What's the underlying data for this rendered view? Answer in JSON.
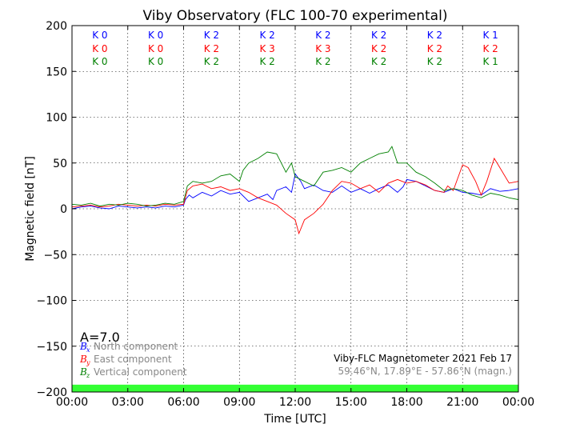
{
  "chart_data": {
    "type": "line",
    "title": "Viby Observatory (FLC 100-70 experimental)",
    "xlabel": "Time [UTC]",
    "ylabel": "Magnetic field [nT]",
    "xlim": [
      0,
      24
    ],
    "ylim": [
      -200,
      200
    ],
    "grid": true,
    "x_tick_labels": [
      "00:00",
      "03:00",
      "06:00",
      "09:00",
      "12:00",
      "15:00",
      "18:00",
      "21:00",
      "00:00"
    ],
    "y_ticks": [
      {
        "value": 200,
        "label": "200"
      },
      {
        "value": 150,
        "label": "150"
      },
      {
        "value": 100,
        "label": "100"
      },
      {
        "value": 50,
        "label": "50"
      },
      {
        "value": 0,
        "label": "0"
      },
      {
        "value": -50,
        "label": "−50"
      },
      {
        "value": -100,
        "label": "−100"
      },
      {
        "value": -150,
        "label": "−150"
      },
      {
        "value": -200,
        "label": "−200"
      }
    ],
    "k_index": {
      "north": {
        "color": "#0000ff",
        "labels": [
          "K 0",
          "K 0",
          "K 2",
          "K 2",
          "K 2",
          "K 2",
          "K 2",
          "K 1"
        ]
      },
      "east": {
        "color": "#ff0000",
        "labels": [
          "K 0",
          "K 0",
          "K 2",
          "K 3",
          "K 3",
          "K 2",
          "K 2",
          "K 2"
        ]
      },
      "vertical": {
        "color": "#008000",
        "labels": [
          "K 0",
          "K 0",
          "K 2",
          "K 2",
          "K 2",
          "K 2",
          "K 2",
          "K 1"
        ]
      }
    },
    "a_index": "A=7.0",
    "legend": {
      "placement": "lower-left",
      "items": [
        {
          "symbol": "B",
          "sub": "x",
          "text": "North component",
          "color": "#0000ff"
        },
        {
          "symbol": "B",
          "sub": "y",
          "text": "East component",
          "color": "#ff0000"
        },
        {
          "symbol": "B",
          "sub": "z",
          "text": "Vertical component",
          "color": "#008000"
        }
      ]
    },
    "info": {
      "line1": "Viby-FLC Magnetometer 2021 Feb 17",
      "line2": "59.46°N, 17.89°E - 57.86°N (magn.)"
    },
    "quiet_band": {
      "color": "#33ff33",
      "y_from": -200,
      "y_to": -192
    },
    "series": [
      {
        "color": "#0000ff",
        "x": [
          0,
          0.5,
          1,
          1.5,
          2,
          2.5,
          3,
          3.5,
          4,
          4.5,
          5,
          5.5,
          6,
          6.1,
          6.3,
          6.5,
          7,
          7.5,
          8,
          8.5,
          9,
          9.5,
          10,
          10.5,
          10.8,
          11,
          11.5,
          11.8,
          12,
          12.3,
          12.5,
          13,
          13.5,
          14,
          14.5,
          15,
          15.5,
          16,
          16.5,
          17,
          17.5,
          17.8,
          18,
          18.5,
          19,
          19.5,
          20,
          20.5,
          21,
          21.5,
          22,
          22.5,
          23,
          23.5,
          24
        ],
        "values": [
          0,
          2,
          3,
          1,
          0,
          3,
          2,
          1,
          2,
          1,
          3,
          2,
          4,
          10,
          15,
          12,
          18,
          14,
          20,
          16,
          18,
          8,
          12,
          16,
          10,
          20,
          24,
          18,
          38,
          30,
          22,
          26,
          20,
          18,
          25,
          18,
          22,
          17,
          22,
          26,
          18,
          24,
          32,
          30,
          25,
          20,
          18,
          22,
          18,
          17,
          15,
          22,
          19,
          20,
          22
        ]
      },
      {
        "color": "#ff0000",
        "x": [
          0,
          0.5,
          1,
          1.5,
          2,
          2.5,
          3,
          3.5,
          4,
          4.5,
          5,
          5.5,
          6,
          6.2,
          6.5,
          7,
          7.5,
          8,
          8.5,
          9,
          9.5,
          10,
          10.5,
          11,
          11.5,
          12,
          12.2,
          12.5,
          13,
          13.5,
          14,
          14.5,
          15,
          15.5,
          16,
          16.5,
          17,
          17.5,
          18,
          18.5,
          19,
          19.5,
          20,
          20.2,
          20.5,
          21,
          21.3,
          21.7,
          22,
          22.3,
          22.7,
          23,
          23.5,
          24
        ],
        "values": [
          2,
          3,
          4,
          2,
          3,
          5,
          4,
          3,
          4,
          3,
          5,
          4,
          5,
          20,
          25,
          27,
          22,
          24,
          20,
          22,
          18,
          12,
          8,
          4,
          -5,
          -12,
          -27,
          -12,
          -5,
          5,
          20,
          30,
          28,
          22,
          26,
          18,
          28,
          32,
          28,
          30,
          26,
          20,
          18,
          25,
          20,
          48,
          45,
          30,
          15,
          30,
          55,
          45,
          28,
          30
        ]
      },
      {
        "color": "#008000",
        "x": [
          0,
          0.5,
          1,
          1.5,
          2,
          2.5,
          3,
          3.5,
          4,
          4.5,
          5,
          5.5,
          6,
          6.2,
          6.5,
          7,
          7.5,
          8,
          8.5,
          9,
          9.2,
          9.5,
          10,
          10.5,
          11,
          11.5,
          11.8,
          12,
          12.5,
          13,
          13.5,
          14,
          14.5,
          15,
          15.5,
          16,
          16.5,
          17,
          17.2,
          17.5,
          18,
          18.5,
          19,
          19.5,
          20,
          20.5,
          21,
          21.5,
          22,
          22.5,
          23,
          23.5,
          24
        ],
        "values": [
          5,
          4,
          6,
          3,
          5,
          4,
          6,
          5,
          3,
          4,
          6,
          5,
          8,
          25,
          30,
          28,
          30,
          36,
          38,
          30,
          42,
          50,
          55,
          62,
          60,
          40,
          50,
          35,
          30,
          25,
          40,
          42,
          45,
          40,
          50,
          55,
          60,
          62,
          68,
          50,
          50,
          40,
          35,
          28,
          20,
          22,
          20,
          15,
          12,
          17,
          15,
          12,
          10
        ]
      }
    ]
  }
}
